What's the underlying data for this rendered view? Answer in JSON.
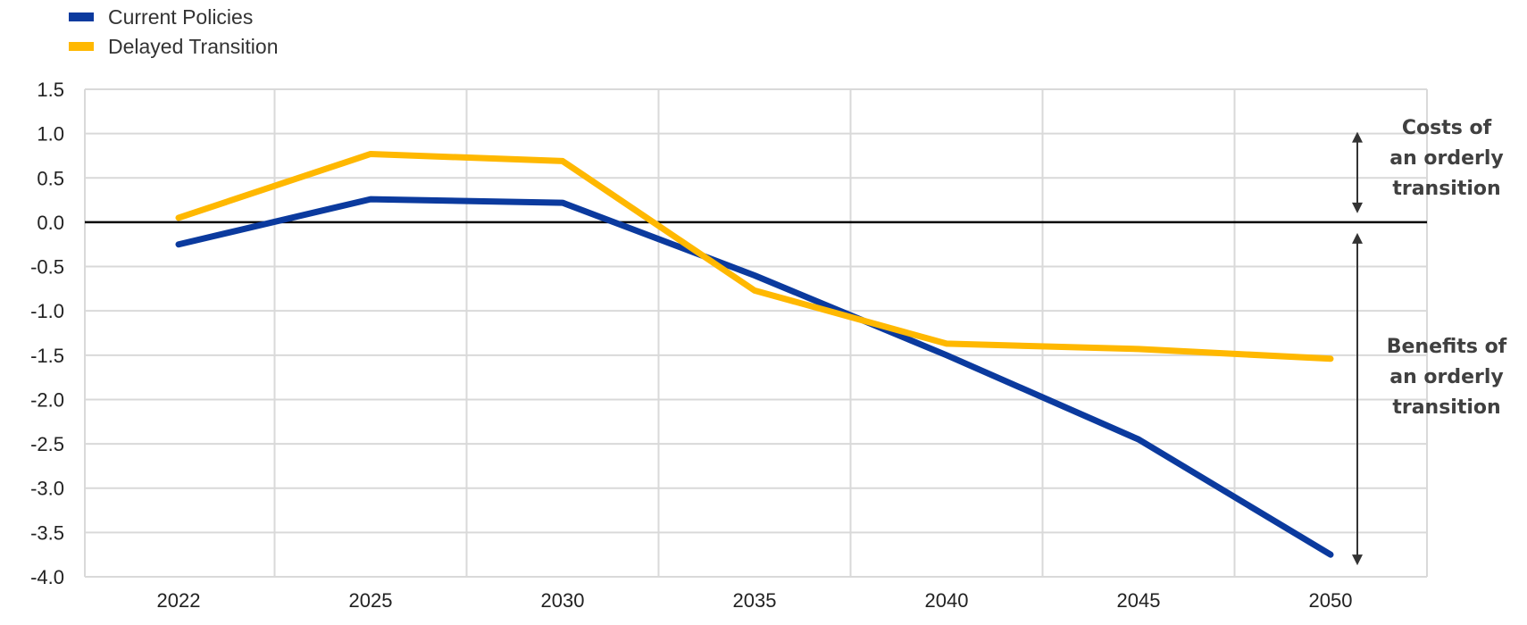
{
  "chart_data": {
    "type": "line",
    "title": "",
    "xlabel": "",
    "ylabel": "",
    "categories": [
      "2022",
      "2025",
      "2030",
      "2035",
      "2040",
      "2045",
      "2050"
    ],
    "ylim": [
      -4.0,
      1.5
    ],
    "yticks": [
      "1.5",
      "1.0",
      "0.5",
      "0.0",
      "-0.5",
      "-1.0",
      "-1.5",
      "-2.0",
      "-2.5",
      "-3.0",
      "-3.5",
      "-4.0"
    ],
    "grid": true,
    "legend_position": "top-left",
    "series": [
      {
        "name": "Current Policies",
        "color": "#0b3a9e",
        "values": [
          -0.25,
          0.26,
          0.22,
          -0.6,
          -1.5,
          -2.45,
          -3.75
        ]
      },
      {
        "name": "Delayed Transition",
        "color": "#ffb800",
        "values": [
          0.05,
          0.77,
          0.69,
          -0.77,
          -1.37,
          -1.43,
          -1.54
        ]
      }
    ],
    "annotations": [
      {
        "id": "costs",
        "lines": [
          "Costs of",
          "an orderly",
          "transition"
        ],
        "from": 1.0,
        "to": 0.0
      },
      {
        "id": "benefits",
        "lines": [
          "Benefits of",
          "an orderly",
          "transition"
        ],
        "from": 0.0,
        "to": -3.85
      }
    ]
  }
}
